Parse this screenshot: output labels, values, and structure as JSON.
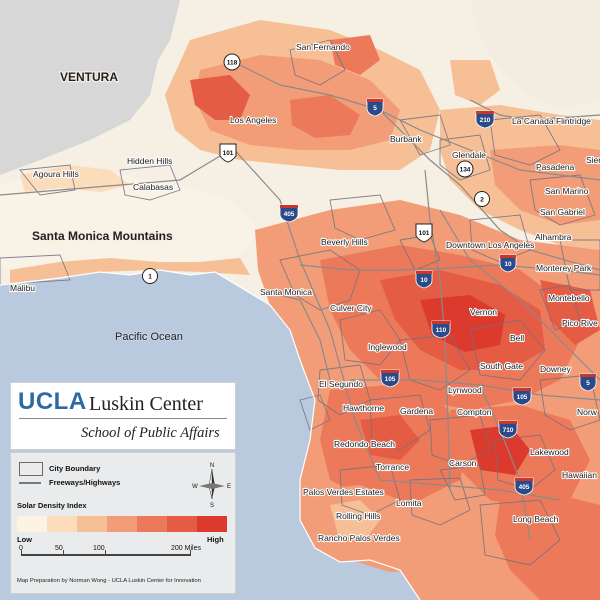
{
  "map": {
    "places": [
      {
        "name": "San Fernando"
      },
      {
        "name": "Los Angeles"
      },
      {
        "name": "Burbank"
      },
      {
        "name": "Glendale"
      },
      {
        "name": "La Canada Flintridge"
      },
      {
        "name": "Pasadena"
      },
      {
        "name": "Sierra"
      },
      {
        "name": "San Marino"
      },
      {
        "name": "San Gabriel"
      },
      {
        "name": "Alhambra"
      },
      {
        "name": "Hidden Hills"
      },
      {
        "name": "Agoura Hills"
      },
      {
        "name": "Calabasas"
      },
      {
        "name": "Beverly Hills"
      },
      {
        "name": "Downtown Los Angeles"
      },
      {
        "name": "Monterey Park"
      },
      {
        "name": "Malibu"
      },
      {
        "name": "Santa Monica"
      },
      {
        "name": "Montebello"
      },
      {
        "name": "Culver City"
      },
      {
        "name": "Vernon"
      },
      {
        "name": "Pico Rive"
      },
      {
        "name": "Bell"
      },
      {
        "name": "Inglewood"
      },
      {
        "name": "South Gate"
      },
      {
        "name": "Downey"
      },
      {
        "name": "El Segundo"
      },
      {
        "name": "Lynwood"
      },
      {
        "name": "Hawthorne"
      },
      {
        "name": "Gardena"
      },
      {
        "name": "Compton"
      },
      {
        "name": "Norw"
      },
      {
        "name": "Redondo Beach"
      },
      {
        "name": "Lakewood"
      },
      {
        "name": "Carson"
      },
      {
        "name": "Torrance"
      },
      {
        "name": "Hawaiian"
      },
      {
        "name": "Palos Verdes Estates"
      },
      {
        "name": "Lomita"
      },
      {
        "name": "Rolling Hills"
      },
      {
        "name": "Long Beach"
      },
      {
        "name": "Rancho Palos Verdes"
      }
    ],
    "regions": {
      "ventura": "VENTURA",
      "santa_monica_mountains": "Santa Monica Mountains",
      "pacific_ocean": "Pacific Ocean"
    },
    "highways": [
      {
        "num": "118",
        "kind": "state"
      },
      {
        "num": "5",
        "kind": "interstate"
      },
      {
        "num": "210",
        "kind": "interstate"
      },
      {
        "num": "101",
        "kind": "us"
      },
      {
        "num": "134",
        "kind": "state"
      },
      {
        "num": "2",
        "kind": "state"
      },
      {
        "num": "405",
        "kind": "interstate"
      },
      {
        "num": "101",
        "kind": "us"
      },
      {
        "num": "10",
        "kind": "interstate"
      },
      {
        "num": "10",
        "kind": "interstate"
      },
      {
        "num": "1",
        "kind": "state"
      },
      {
        "num": "110",
        "kind": "interstate"
      },
      {
        "num": "105",
        "kind": "interstate"
      },
      {
        "num": "5",
        "kind": "interstate"
      },
      {
        "num": "105",
        "kind": "interstate"
      },
      {
        "num": "710",
        "kind": "interstate"
      },
      {
        "num": "405",
        "kind": "interstate"
      }
    ],
    "colors": {
      "ocean": "#b9c9de",
      "land_base": "#f6efe3",
      "mountains": "#dcdcdc",
      "low": "#fbe6cf",
      "medium": "#f29d77",
      "high": "#e0332a",
      "interstate": "#2a4a8a",
      "interstate_top": "#c8362e"
    }
  },
  "branding": {
    "ucla": "UCLA",
    "center": "Luskin Center",
    "school": "School of Public Affairs"
  },
  "legend": {
    "city_boundary": "City Boundary",
    "freeways": "Freeways/Highways",
    "index_title": "Solar Density Index",
    "low": "Low",
    "high": "High",
    "ramp": [
      "#fdf3e3",
      "#fbdcbb",
      "#f7bf95",
      "#f29d77",
      "#ec7a5a",
      "#e55c44",
      "#dd3a2e"
    ],
    "scale_labels": [
      "0",
      "50",
      "100",
      "200 Miles"
    ],
    "north_label": "N",
    "south_label": "S",
    "east_label": "E",
    "west_label": "W",
    "credit": "Map Preparation by Norman Wong - UCLA Luskin Center for Innovation"
  }
}
